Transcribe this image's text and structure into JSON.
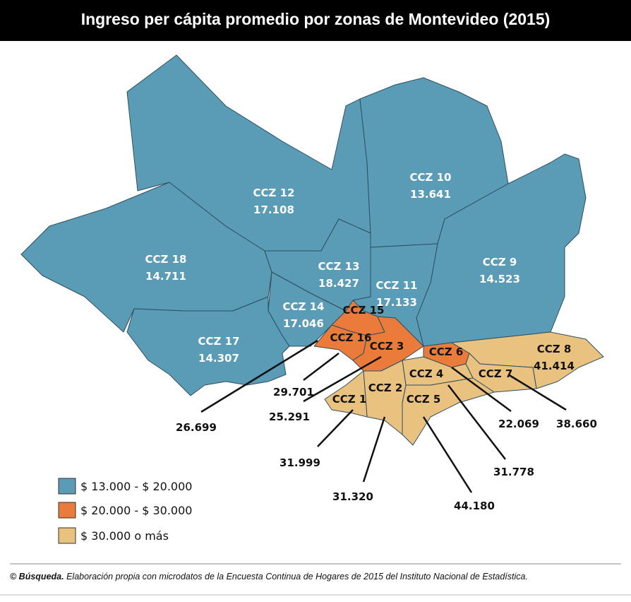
{
  "header": {
    "title": "Ingreso per cápita promedio por zonas de Montevideo (2015)"
  },
  "zones": [
    {
      "name": "CCZ 12",
      "value": "17.108"
    },
    {
      "name": "CCZ 10",
      "value": "13.641"
    },
    {
      "name": "CCZ 18",
      "value": "14.711"
    },
    {
      "name": "CCZ 13",
      "value": "18.427"
    },
    {
      "name": "CCZ 9",
      "value": "14.523"
    },
    {
      "name": "CCZ 11",
      "value": "17.133"
    },
    {
      "name": "CCZ 14",
      "value": "17.046"
    },
    {
      "name": "CCZ 17",
      "value": "14.307"
    },
    {
      "name": "CCZ 8",
      "value": "41.414"
    },
    {
      "name": "CCZ 15"
    },
    {
      "name": "CCZ 16"
    },
    {
      "name": "CCZ 3"
    },
    {
      "name": "CCZ 6"
    },
    {
      "name": "CCZ 7"
    },
    {
      "name": "CCZ 4"
    },
    {
      "name": "CCZ 1"
    },
    {
      "name": "CCZ 2"
    },
    {
      "name": "CCZ 5"
    }
  ],
  "callouts": [
    "29.701",
    "25.291",
    "26.699",
    "31.999",
    "31.320",
    "44.180",
    "31.778",
    "22.069",
    "38.660"
  ],
  "legend": [
    "$ 13.000 - $ 20.000",
    "$ 20.000 - $ 30.000",
    "$ 30.000 o más"
  ],
  "footer": {
    "source": "© Búsqueda.",
    "text": "Elaboración propia con microdatos de la Encuesta Continua de Hogares de 2015 del Instituto Nacional de Estadística."
  }
}
